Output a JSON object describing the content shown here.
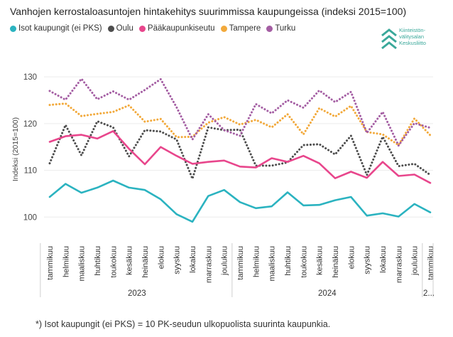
{
  "title": "Vanhojen kerrostaloasuntojen hintakehitys suurimmissa kaupungeissa (indeksi 2015=100)",
  "logo": {
    "lines": [
      "Kiinteistön-",
      "välitysalan",
      "Keskusliitto"
    ],
    "icon_name": "chevron-stack-icon",
    "color": "#3aa89a"
  },
  "footnote": "*) Isot kaupungit (ei PKS) = 10 PK-seudun ulkopuolista suurinta kaupunkia.",
  "chart_data": {
    "type": "line",
    "title": "Vanhojen kerrostaloasuntojen hintakehitys suurimmissa kaupungeissa (indeksi 2015=100)",
    "ylabel": "Indeksi (2015=100)",
    "xlabel": "",
    "ylim": [
      97,
      132
    ],
    "yticks": [
      100,
      110,
      120,
      130
    ],
    "grid": true,
    "legend_position": "top",
    "categories": [
      "tammikuu",
      "helmikuu",
      "maaliskuu",
      "huhtikuu",
      "toukokuu",
      "kesäkuu",
      "heinäkuu",
      "elokuu",
      "syyskuu",
      "lokakuu",
      "marraskuu",
      "joulukuu",
      "tammikuu",
      "helmikuu",
      "maaliskuu",
      "huhtikuu",
      "toukokuu",
      "kesäkuu",
      "heinäkuu",
      "elokuu",
      "syyskuu",
      "lokakuu",
      "marraskuu",
      "joulukuu",
      "tammikuu"
    ],
    "year_groups": [
      {
        "label": "2023",
        "start": 0,
        "end": 11
      },
      {
        "label": "2024",
        "start": 12,
        "end": 23
      },
      {
        "label": "2...",
        "start": 24,
        "end": 24
      }
    ],
    "series": [
      {
        "name": "Isot kaupungit (ei PKS)",
        "color": "#2bb3c0",
        "style": "solid",
        "values": [
          104.3,
          107.1,
          105.2,
          106.3,
          107.8,
          106.3,
          105.8,
          103.8,
          100.6,
          99.0,
          104.5,
          105.8,
          103.2,
          101.9,
          102.3,
          105.3,
          102.5,
          102.6,
          103.6,
          104.3,
          100.3,
          100.8,
          100.1,
          102.8,
          101.0
        ]
      },
      {
        "name": "Oulu",
        "color": "#4d4d4d",
        "style": "dotted",
        "values": [
          111.5,
          119.7,
          113.2,
          120.5,
          119.2,
          113.0,
          118.6,
          118.3,
          116.6,
          108.2,
          119.2,
          118.6,
          118.7,
          111.0,
          111.0,
          111.7,
          115.4,
          115.6,
          113.4,
          117.4,
          109.0,
          117.2,
          110.9,
          111.4,
          109.0
        ]
      },
      {
        "name": "Pääkaupunkiseutu",
        "color": "#e8468c",
        "style": "solid",
        "values": [
          116.1,
          117.3,
          117.6,
          116.8,
          118.4,
          114.6,
          111.3,
          115.0,
          113.1,
          111.4,
          111.8,
          112.1,
          110.8,
          110.6,
          112.6,
          111.8,
          113.1,
          111.5,
          108.3,
          109.7,
          108.4,
          111.8,
          108.8,
          109.1,
          107.3
        ]
      },
      {
        "name": "Tampere",
        "color": "#f2a93b",
        "style": "dotted",
        "values": [
          124.0,
          124.3,
          121.6,
          122.1,
          122.5,
          123.9,
          120.4,
          121.0,
          117.1,
          117.2,
          120.2,
          121.4,
          119.8,
          120.8,
          119.2,
          122.0,
          117.7,
          123.3,
          121.5,
          123.8,
          118.2,
          117.7,
          115.4,
          121.1,
          117.5
        ]
      },
      {
        "name": "Turku",
        "color": "#a45ea3",
        "style": "dotted",
        "values": [
          127.0,
          125.1,
          129.6,
          125.2,
          126.9,
          125.1,
          127.2,
          129.5,
          123.5,
          116.6,
          122.0,
          118.6,
          117.4,
          124.2,
          122.2,
          125.0,
          123.4,
          127.1,
          124.6,
          126.8,
          118.0,
          122.5,
          115.3,
          120.1,
          119.1
        ]
      }
    ]
  }
}
